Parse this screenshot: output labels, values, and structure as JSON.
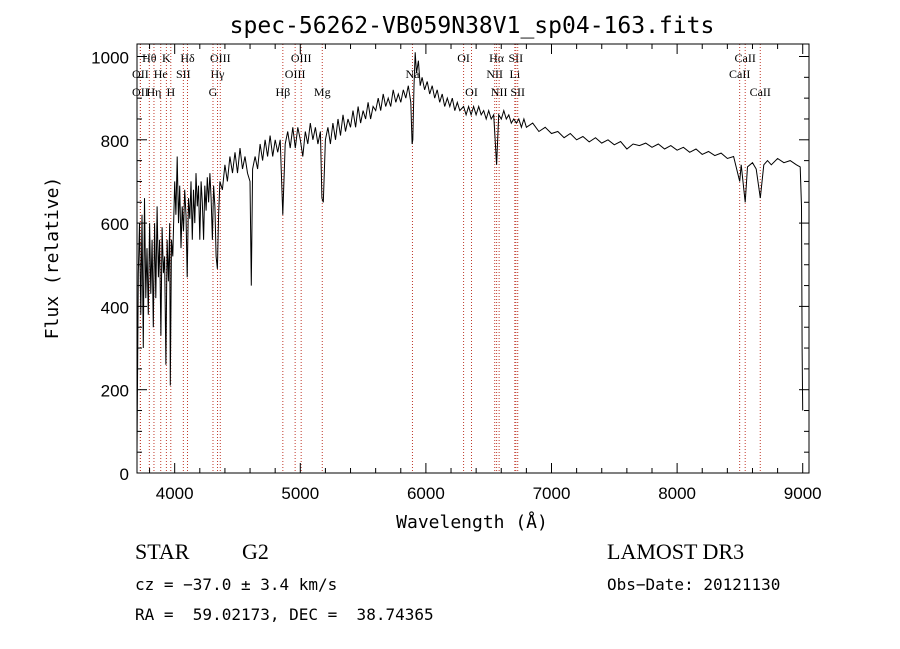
{
  "chart_data": {
    "type": "line",
    "title": "spec-56262-VB059N38V1_sp04-163.fits",
    "xlabel": "Wavelength (Å)",
    "ylabel": "Flux (relative)",
    "xlim": [
      3700,
      9050
    ],
    "ylim": [
      0,
      1030
    ],
    "xticks": [
      4000,
      5000,
      6000,
      7000,
      8000,
      9000
    ],
    "yticks": [
      0,
      200,
      400,
      600,
      800,
      1000
    ],
    "grid": false,
    "spectrum": [
      [
        3700,
        50
      ],
      [
        3710,
        480
      ],
      [
        3720,
        600
      ],
      [
        3730,
        380
      ],
      [
        3740,
        620
      ],
      [
        3750,
        300
      ],
      [
        3760,
        660
      ],
      [
        3770,
        420
      ],
      [
        3780,
        540
      ],
      [
        3790,
        380
      ],
      [
        3800,
        600
      ],
      [
        3810,
        430
      ],
      [
        3820,
        560
      ],
      [
        3830,
        350
      ],
      [
        3840,
        600
      ],
      [
        3850,
        420
      ],
      [
        3860,
        640
      ],
      [
        3870,
        470
      ],
      [
        3880,
        560
      ],
      [
        3890,
        330
      ],
      [
        3900,
        590
      ],
      [
        3910,
        480
      ],
      [
        3920,
        520
      ],
      [
        3930,
        260
      ],
      [
        3940,
        560
      ],
      [
        3950,
        460
      ],
      [
        3960,
        600
      ],
      [
        3965,
        210
      ],
      [
        3975,
        560
      ],
      [
        3985,
        520
      ],
      [
        4000,
        700
      ],
      [
        4010,
        620
      ],
      [
        4020,
        760
      ],
      [
        4030,
        600
      ],
      [
        4040,
        690
      ],
      [
        4050,
        540
      ],
      [
        4060,
        640
      ],
      [
        4070,
        580
      ],
      [
        4080,
        680
      ],
      [
        4090,
        620
      ],
      [
        4100,
        470
      ],
      [
        4110,
        660
      ],
      [
        4120,
        610
      ],
      [
        4130,
        700
      ],
      [
        4140,
        560
      ],
      [
        4150,
        680
      ],
      [
        4160,
        600
      ],
      [
        4170,
        720
      ],
      [
        4180,
        640
      ],
      [
        4190,
        690
      ],
      [
        4200,
        560
      ],
      [
        4210,
        700
      ],
      [
        4220,
        650
      ],
      [
        4230,
        560
      ],
      [
        4240,
        690
      ],
      [
        4250,
        630
      ],
      [
        4260,
        710
      ],
      [
        4270,
        650
      ],
      [
        4280,
        720
      ],
      [
        4290,
        660
      ],
      [
        4300,
        560
      ],
      [
        4310,
        690
      ],
      [
        4320,
        640
      ],
      [
        4330,
        520
      ],
      [
        4340,
        490
      ],
      [
        4350,
        620
      ],
      [
        4360,
        700
      ],
      [
        4380,
        680
      ],
      [
        4400,
        740
      ],
      [
        4420,
        700
      ],
      [
        4440,
        760
      ],
      [
        4460,
        720
      ],
      [
        4480,
        770
      ],
      [
        4500,
        720
      ],
      [
        4520,
        780
      ],
      [
        4540,
        730
      ],
      [
        4560,
        760
      ],
      [
        4580,
        720
      ],
      [
        4600,
        700
      ],
      [
        4610,
        450
      ],
      [
        4620,
        730
      ],
      [
        4640,
        760
      ],
      [
        4660,
        730
      ],
      [
        4680,
        790
      ],
      [
        4700,
        750
      ],
      [
        4720,
        800
      ],
      [
        4740,
        760
      ],
      [
        4760,
        810
      ],
      [
        4780,
        760
      ],
      [
        4800,
        800
      ],
      [
        4820,
        770
      ],
      [
        4840,
        800
      ],
      [
        4861,
        620
      ],
      [
        4880,
        790
      ],
      [
        4900,
        820
      ],
      [
        4920,
        780
      ],
      [
        4940,
        830
      ],
      [
        4960,
        780
      ],
      [
        4980,
        830
      ],
      [
        5000,
        800
      ],
      [
        5020,
        760
      ],
      [
        5040,
        820
      ],
      [
        5060,
        790
      ],
      [
        5080,
        840
      ],
      [
        5100,
        800
      ],
      [
        5120,
        830
      ],
      [
        5140,
        790
      ],
      [
        5160,
        820
      ],
      [
        5172,
        660
      ],
      [
        5183,
        650
      ],
      [
        5200,
        800
      ],
      [
        5220,
        830
      ],
      [
        5240,
        790
      ],
      [
        5260,
        840
      ],
      [
        5280,
        800
      ],
      [
        5300,
        850
      ],
      [
        5320,
        810
      ],
      [
        5340,
        860
      ],
      [
        5360,
        820
      ],
      [
        5380,
        850
      ],
      [
        5400,
        830
      ],
      [
        5420,
        870
      ],
      [
        5440,
        830
      ],
      [
        5460,
        880
      ],
      [
        5480,
        840
      ],
      [
        5500,
        870
      ],
      [
        5520,
        850
      ],
      [
        5540,
        890
      ],
      [
        5560,
        850
      ],
      [
        5580,
        880
      ],
      [
        5600,
        870
      ],
      [
        5620,
        900
      ],
      [
        5640,
        870
      ],
      [
        5660,
        910
      ],
      [
        5680,
        880
      ],
      [
        5700,
        900
      ],
      [
        5720,
        880
      ],
      [
        5740,
        920
      ],
      [
        5760,
        890
      ],
      [
        5780,
        910
      ],
      [
        5800,
        890
      ],
      [
        5820,
        920
      ],
      [
        5840,
        900
      ],
      [
        5860,
        930
      ],
      [
        5880,
        890
      ],
      [
        5890,
        790
      ],
      [
        5896,
        800
      ],
      [
        5905,
        930
      ],
      [
        5915,
        1010
      ],
      [
        5925,
        960
      ],
      [
        5940,
        990
      ],
      [
        5955,
        930
      ],
      [
        5970,
        950
      ],
      [
        5990,
        920
      ],
      [
        6010,
        940
      ],
      [
        6030,
        910
      ],
      [
        6050,
        930
      ],
      [
        6070,
        900
      ],
      [
        6090,
        920
      ],
      [
        6110,
        890
      ],
      [
        6130,
        910
      ],
      [
        6150,
        880
      ],
      [
        6170,
        900
      ],
      [
        6190,
        880
      ],
      [
        6210,
        900
      ],
      [
        6230,
        870
      ],
      [
        6250,
        890
      ],
      [
        6270,
        870
      ],
      [
        6300,
        880
      ],
      [
        6320,
        860
      ],
      [
        6340,
        880
      ],
      [
        6360,
        860
      ],
      [
        6380,
        880
      ],
      [
        6400,
        860
      ],
      [
        6420,
        880
      ],
      [
        6440,
        860
      ],
      [
        6460,
        870
      ],
      [
        6480,
        850
      ],
      [
        6500,
        870
      ],
      [
        6520,
        850
      ],
      [
        6540,
        860
      ],
      [
        6563,
        740
      ],
      [
        6580,
        860
      ],
      [
        6600,
        850
      ],
      [
        6620,
        870
      ],
      [
        6640,
        850
      ],
      [
        6660,
        860
      ],
      [
        6680,
        840
      ],
      [
        6700,
        850
      ],
      [
        6720,
        840
      ],
      [
        6740,
        850
      ],
      [
        6760,
        830
      ],
      [
        6780,
        850
      ],
      [
        6800,
        830
      ],
      [
        6850,
        840
      ],
      [
        6900,
        820
      ],
      [
        6950,
        830
      ],
      [
        7000,
        815
      ],
      [
        7050,
        820
      ],
      [
        7100,
        805
      ],
      [
        7150,
        815
      ],
      [
        7200,
        800
      ],
      [
        7250,
        808
      ],
      [
        7300,
        795
      ],
      [
        7350,
        805
      ],
      [
        7400,
        792
      ],
      [
        7450,
        800
      ],
      [
        7500,
        788
      ],
      [
        7550,
        796
      ],
      [
        7600,
        778
      ],
      [
        7650,
        790
      ],
      [
        7700,
        786
      ],
      [
        7750,
        792
      ],
      [
        7800,
        782
      ],
      [
        7850,
        790
      ],
      [
        7900,
        778
      ],
      [
        7950,
        786
      ],
      [
        8000,
        775
      ],
      [
        8050,
        782
      ],
      [
        8100,
        770
      ],
      [
        8150,
        778
      ],
      [
        8200,
        765
      ],
      [
        8250,
        772
      ],
      [
        8300,
        762
      ],
      [
        8350,
        768
      ],
      [
        8400,
        755
      ],
      [
        8450,
        760
      ],
      [
        8498,
        700
      ],
      [
        8510,
        740
      ],
      [
        8542,
        650
      ],
      [
        8560,
        735
      ],
      [
        8600,
        745
      ],
      [
        8630,
        730
      ],
      [
        8662,
        660
      ],
      [
        8690,
        740
      ],
      [
        8720,
        750
      ],
      [
        8750,
        740
      ],
      [
        8800,
        755
      ],
      [
        8850,
        745
      ],
      [
        8900,
        750
      ],
      [
        8950,
        740
      ],
      [
        8980,
        735
      ],
      [
        8990,
        640
      ],
      [
        8995,
        300
      ],
      [
        9000,
        150
      ]
    ],
    "lines": [
      {
        "label": "Hθ",
        "x": 3798,
        "row": 1
      },
      {
        "label": "OII",
        "x": 3727,
        "row": 2
      },
      {
        "label": "OII",
        "x": 3727,
        "row": 3
      },
      {
        "label": "Hη",
        "x": 3835,
        "row": 3
      },
      {
        "label": "He",
        "x": 3889,
        "row": 2
      },
      {
        "label": "K",
        "x": 3934,
        "row": 1
      },
      {
        "label": "H",
        "x": 3969,
        "row": 3
      },
      {
        "label": "SII",
        "x": 4069,
        "row": 2
      },
      {
        "label": "Hδ",
        "x": 4102,
        "row": 1
      },
      {
        "label": "OIII",
        "x": 4363,
        "row": 1
      },
      {
        "label": "Hγ",
        "x": 4341,
        "row": 2
      },
      {
        "label": "G",
        "x": 4305,
        "row": 3
      },
      {
        "label": "Hβ",
        "x": 4861,
        "row": 3
      },
      {
        "label": "OIII",
        "x": 4959,
        "row": 2
      },
      {
        "label": "OIII",
        "x": 5007,
        "row": 1
      },
      {
        "label": "Mg",
        "x": 5175,
        "row": 3
      },
      {
        "label": "Na",
        "x": 5893,
        "row": 2
      },
      {
        "label": "OI",
        "x": 6300,
        "row": 1
      },
      {
        "label": "OI",
        "x": 6363,
        "row": 3
      },
      {
        "label": "Hα",
        "x": 6563,
        "row": 1
      },
      {
        "label": "NII",
        "x": 6548,
        "row": 2
      },
      {
        "label": "NII",
        "x": 6583,
        "row": 3
      },
      {
        "label": "SII",
        "x": 6716,
        "row": 1
      },
      {
        "label": "Li",
        "x": 6708,
        "row": 2
      },
      {
        "label": "SII",
        "x": 6731,
        "row": 3
      },
      {
        "label": "CaII",
        "x": 8542,
        "row": 1
      },
      {
        "label": "CaII",
        "x": 8498,
        "row": 2
      },
      {
        "label": "CaII",
        "x": 8662,
        "row": 3
      }
    ]
  },
  "info": {
    "object_class": "STAR",
    "subclass": "G2",
    "survey": "LAMOST DR3",
    "redshift_text": "cz = −37.0 ± 3.4 km/s",
    "obs_date": "Obs−Date: 20121130",
    "coords": "RA =  59.02173, DEC =  38.74365"
  }
}
